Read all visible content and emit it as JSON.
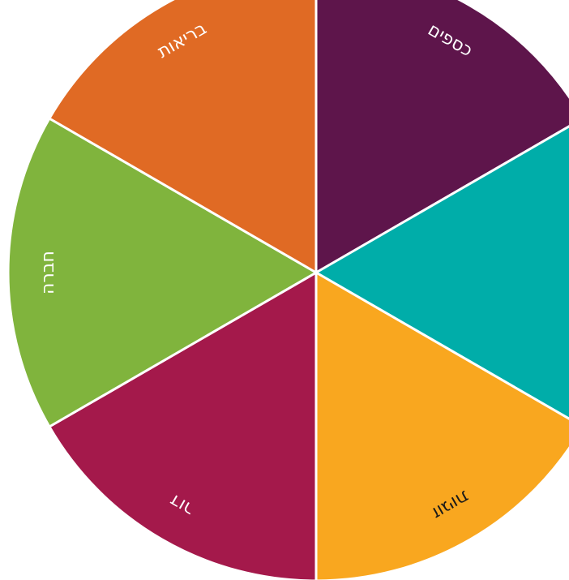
{
  "wheel": {
    "segments": [
      {
        "label": "כספים",
        "color": "#5e154b",
        "text_color": "#ffffff"
      },
      {
        "color": "#00ada9"
      },
      {
        "label": "זוגיות",
        "color": "#f9a71f",
        "text_color": "#1a1a1a"
      },
      {
        "label": "דור",
        "color": "#a4194b",
        "text_color": "#ffffff"
      },
      {
        "label": "חברה",
        "color": "#80b43d",
        "text_color": "#ffffff"
      },
      {
        "label": "בריאות",
        "color": "#e06a24",
        "text_color": "#ffffff"
      }
    ]
  }
}
